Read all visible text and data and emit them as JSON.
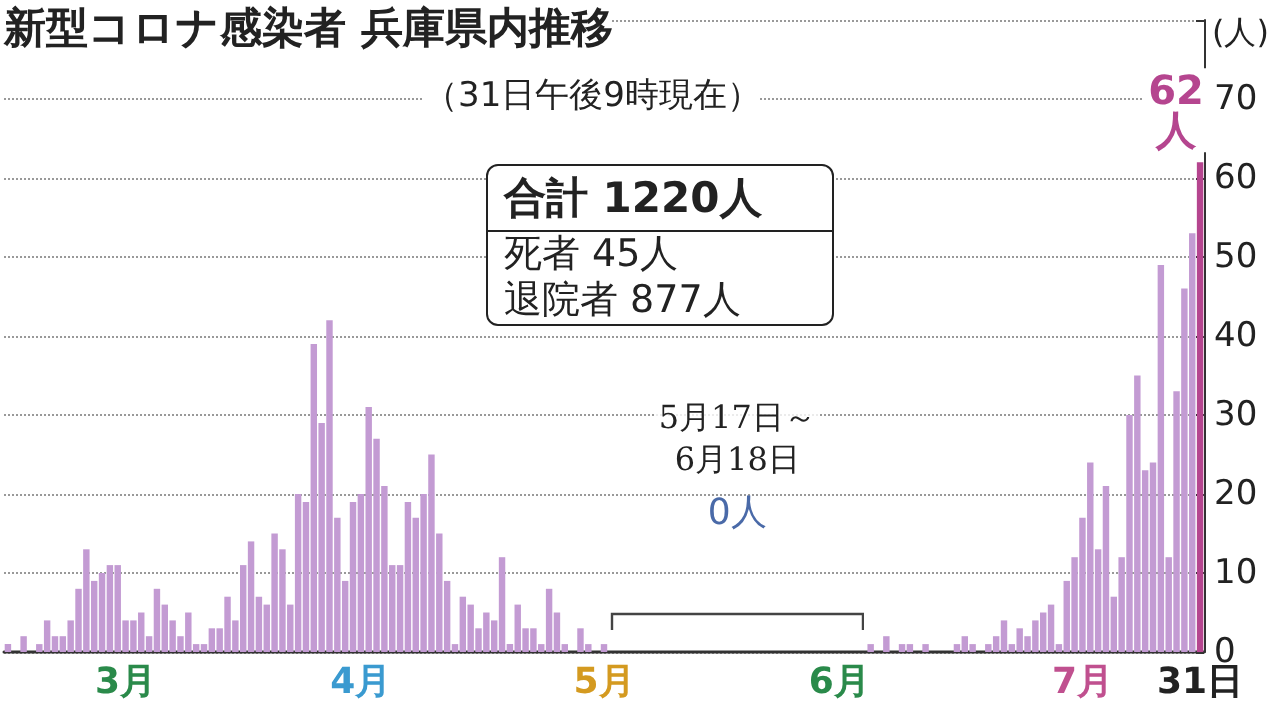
{
  "chart_data": {
    "type": "bar",
    "title": "新型コロナ感染者 兵庫県内推移",
    "subtitle": "（31日午後9時現在）",
    "ylabel": "(人)",
    "annotations": [
      "合計 1220人",
      "死者 45人",
      "退院者 877人",
      "5月17日～6月18日",
      "0人"
    ],
    "categories": [
      null,
      null,
      null,
      null,
      null,
      null,
      null,
      null,
      null,
      null,
      null,
      null,
      null,
      null,
      null,
      "3月",
      null,
      null,
      null,
      null,
      null,
      null,
      null,
      null,
      null,
      null,
      null,
      null,
      null,
      null,
      null,
      null,
      null,
      null,
      null,
      null,
      null,
      null,
      null,
      null,
      null,
      null,
      null,
      null,
      null,
      "4月",
      null,
      null,
      null,
      null,
      null,
      null,
      null,
      null,
      null,
      null,
      null,
      null,
      null,
      null,
      null,
      null,
      null,
      null,
      null,
      null,
      null,
      null,
      null,
      null,
      null,
      null,
      null,
      null,
      null,
      null,
      "5月",
      null,
      null,
      null,
      null,
      null,
      null,
      null,
      null,
      null,
      null,
      null,
      null,
      null,
      null,
      null,
      null,
      null,
      null,
      null,
      null,
      null,
      null,
      null,
      null,
      null,
      null,
      null,
      null,
      null,
      "6月",
      null,
      null,
      null,
      null,
      null,
      null,
      null,
      null,
      null,
      null,
      null,
      null,
      null,
      null,
      null,
      null,
      null,
      null,
      null,
      null,
      null,
      null,
      null,
      null,
      null,
      null,
      null,
      null,
      null,
      null,
      "7月",
      null,
      null,
      null,
      null,
      null,
      null,
      null,
      null,
      null,
      null,
      null,
      null,
      null,
      null,
      "31日"
    ],
    "values": [
      1,
      0,
      2,
      0,
      1,
      4,
      2,
      2,
      4,
      8,
      13,
      9,
      10,
      11,
      11,
      4,
      4,
      5,
      2,
      8,
      6,
      4,
      2,
      5,
      1,
      1,
      3,
      3,
      7,
      4,
      11,
      14,
      7,
      6,
      15,
      13,
      6,
      20,
      19,
      39,
      29,
      42,
      17,
      9,
      19,
      20,
      31,
      27,
      21,
      11,
      11,
      19,
      17,
      20,
      25,
      15,
      9,
      1,
      7,
      6,
      3,
      5,
      4,
      12,
      1,
      6,
      3,
      3,
      1,
      8,
      5,
      1,
      0,
      3,
      1,
      0,
      1,
      0,
      0,
      0,
      0,
      0,
      0,
      0,
      0,
      0,
      0,
      0,
      0,
      0,
      0,
      0,
      0,
      0,
      0,
      0,
      0,
      0,
      0,
      0,
      0,
      0,
      0,
      0,
      0,
      0,
      0,
      0,
      0,
      0,
      1,
      0,
      2,
      0,
      1,
      1,
      0,
      1,
      0,
      0,
      0,
      1,
      2,
      1,
      0,
      1,
      2,
      4,
      1,
      3,
      2,
      4,
      5,
      6,
      1,
      9,
      12,
      17,
      24,
      13,
      21,
      7,
      12,
      30,
      35,
      23,
      24,
      49,
      12,
      33,
      46,
      53,
      62
    ],
    "colors": [
      "#c39bd3",
      "#c39bd3",
      "#c39bd3",
      "#c39bd3",
      "#c39bd3",
      "#c39bd3",
      "#c39bd3",
      "#c39bd3",
      "#c39bd3",
      "#c39bd3",
      "#c39bd3",
      "#c39bd3",
      "#c39bd3",
      "#c39bd3",
      "#c39bd3",
      "#c39bd3",
      "#c39bd3",
      "#c39bd3",
      "#c39bd3",
      "#c39bd3",
      "#c39bd3",
      "#c39bd3",
      "#c39bd3",
      "#c39bd3",
      "#c39bd3",
      "#c39bd3",
      "#c39bd3",
      "#c39bd3",
      "#c39bd3",
      "#c39bd3",
      "#c39bd3",
      "#c39bd3",
      "#c39bd3",
      "#c39bd3",
      "#c39bd3",
      "#c39bd3",
      "#c39bd3",
      "#c39bd3",
      "#c39bd3",
      "#c39bd3",
      "#c39bd3",
      "#c39bd3",
      "#c39bd3",
      "#c39bd3",
      "#c39bd3",
      "#c39bd3",
      "#c39bd3",
      "#c39bd3",
      "#c39bd3",
      "#c39bd3",
      "#c39bd3",
      "#c39bd3",
      "#c39bd3",
      "#c39bd3",
      "#c39bd3",
      "#c39bd3",
      "#c39bd3",
      "#c39bd3",
      "#c39bd3",
      "#c39bd3",
      "#c39bd3",
      "#c39bd3",
      "#c39bd3",
      "#c39bd3",
      "#c39bd3",
      "#c39bd3",
      "#c39bd3",
      "#c39bd3",
      "#c39bd3",
      "#c39bd3",
      "#c39bd3",
      "#c39bd3",
      "#c39bd3",
      "#c39bd3",
      "#c39bd3",
      "#c39bd3",
      "#c39bd3",
      "#c39bd3",
      "#c39bd3",
      "#c39bd3",
      "#c39bd3",
      "#c39bd3",
      "#c39bd3",
      "#c39bd3",
      "#c39bd3",
      "#c39bd3",
      "#c39bd3",
      "#c39bd3",
      "#c39bd3",
      "#c39bd3",
      "#c39bd3",
      "#c39bd3",
      "#c39bd3",
      "#c39bd3",
      "#c39bd3",
      "#c39bd3",
      "#c39bd3",
      "#c39bd3",
      "#c39bd3",
      "#c39bd3",
      "#c39bd3",
      "#c39bd3",
      "#c39bd3",
      "#c39bd3",
      "#c39bd3",
      "#c39bd3",
      "#c39bd3",
      "#c39bd3",
      "#c39bd3",
      "#c39bd3",
      "#c39bd3",
      "#c39bd3",
      "#c39bd3",
      "#c39bd3",
      "#c39bd3",
      "#c39bd3",
      "#c39bd3",
      "#c39bd3",
      "#c39bd3",
      "#c39bd3",
      "#c39bd3",
      "#c39bd3",
      "#c39bd3",
      "#c39bd3",
      "#c39bd3",
      "#c39bd3",
      "#c39bd3",
      "#c39bd3",
      "#c39bd3",
      "#c39bd3",
      "#c39bd3",
      "#c39bd3",
      "#c39bd3",
      "#c39bd3",
      "#c39bd3",
      "#c39bd3",
      "#c39bd3",
      "#c39bd3",
      "#c39bd3",
      "#c39bd3",
      "#c39bd3",
      "#c39bd3",
      "#c39bd3",
      "#c39bd3",
      "#c39bd3",
      "#c39bd3",
      "#c39bd3",
      "#c39bd3",
      "#c39bd3",
      "#c39bd3",
      "#c39bd3",
      "#c39bd3",
      "#b5458f"
    ],
    "value_labels": [
      null,
      null,
      null,
      null,
      null,
      null,
      null,
      null,
      null,
      null,
      null,
      null,
      null,
      null,
      null,
      null,
      null,
      null,
      null,
      null,
      null,
      null,
      null,
      null,
      null,
      null,
      null,
      null,
      null,
      null,
      null,
      null,
      null,
      null,
      null,
      null,
      null,
      null,
      null,
      null,
      null,
      null,
      null,
      null,
      null,
      null,
      null,
      null,
      null,
      null,
      null,
      null,
      null,
      null,
      null,
      null,
      null,
      null,
      null,
      null,
      null,
      null,
      null,
      null,
      null,
      null,
      null,
      null,
      null,
      null,
      null,
      null,
      null,
      null,
      null,
      null,
      null,
      null,
      null,
      null,
      null,
      null,
      null,
      null,
      null,
      null,
      null,
      null,
      null,
      null,
      null,
      null,
      null,
      null,
      null,
      null,
      null,
      null,
      null,
      null,
      null,
      null,
      null,
      null,
      null,
      null,
      null,
      null,
      null,
      null,
      null,
      null,
      null,
      null,
      null,
      null,
      null,
      null,
      null,
      null,
      null,
      null,
      null,
      null,
      null,
      null,
      null,
      null,
      null,
      null,
      null,
      null,
      null,
      null,
      null,
      null,
      null,
      null,
      null,
      null,
      null,
      null,
      null,
      null,
      null,
      null,
      null,
      null,
      null,
      null,
      null,
      null,
      "62人"
    ],
    "ylim": [
      0,
      80
    ],
    "yticks": [
      0,
      10,
      20,
      30,
      40,
      50,
      60,
      70,
      {
        "value": 80,
        "label": null
      }
    ],
    "grid": "y"
  }
}
